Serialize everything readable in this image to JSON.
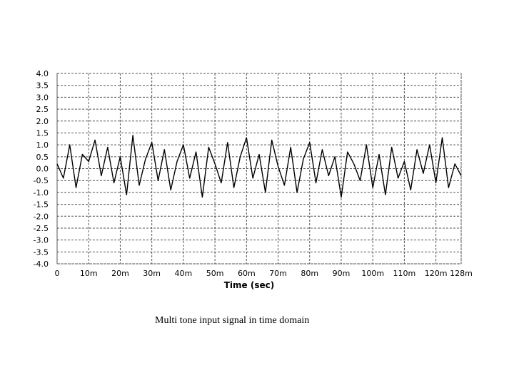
{
  "caption": "Multi tone input signal in time domain",
  "chart_data": {
    "type": "line",
    "title": "",
    "xlabel": "Time (sec)",
    "ylabel": "",
    "xlim": [
      0,
      128
    ],
    "ylim": [
      -4.0,
      4.0
    ],
    "x_unit": "ms",
    "grid": true,
    "grid_style": "dashed",
    "xticks": [
      "0",
      "10m",
      "20m",
      "30m",
      "40m",
      "50m",
      "60m",
      "70m",
      "80m",
      "90m",
      "100m",
      "110m",
      "120m",
      "128m"
    ],
    "yticks": [
      "4.0",
      "3.5",
      "3.0",
      "2.5",
      "2.0",
      "1.5",
      "1.0",
      "0.5",
      "0.0",
      "-0.5",
      "-1.0",
      "-1.5",
      "-2.0",
      "-2.5",
      "-3.0",
      "-3.5",
      "-4.0"
    ],
    "series": [
      {
        "color": "#000000",
        "x": [
          0,
          2,
          4,
          6,
          8,
          10,
          12,
          14,
          16,
          18,
          20,
          22,
          24,
          26,
          28,
          30,
          32,
          34,
          36,
          38,
          40,
          42,
          44,
          46,
          48,
          50,
          52,
          54,
          56,
          58,
          60,
          62,
          64,
          66,
          68,
          70,
          72,
          74,
          76,
          78,
          80,
          82,
          84,
          86,
          88,
          90,
          92,
          94,
          96,
          98,
          100,
          102,
          104,
          106,
          108,
          110,
          112,
          114,
          116,
          118,
          120,
          122,
          124,
          126,
          128
        ],
        "y": [
          0.2,
          -0.4,
          1.0,
          -0.8,
          0.6,
          0.3,
          1.2,
          -0.3,
          0.9,
          -0.6,
          0.5,
          -1.1,
          1.4,
          -0.7,
          0.4,
          1.1,
          -0.5,
          0.8,
          -0.9,
          0.3,
          1.0,
          -0.4,
          0.7,
          -1.2,
          0.9,
          0.2,
          -0.6,
          1.1,
          -0.8,
          0.5,
          1.3,
          -0.4,
          0.6,
          -1.0,
          1.2,
          0.1,
          -0.7,
          0.9,
          -1.0,
          0.4,
          1.1,
          -0.6,
          0.8,
          -0.3,
          0.5,
          -1.2,
          0.7,
          0.2,
          -0.5,
          1.0,
          -0.8,
          0.6,
          -1.1,
          0.9,
          -0.4,
          0.3,
          -0.9,
          0.8,
          -0.2,
          1.0,
          -0.6,
          1.3,
          -0.8,
          0.2,
          -0.3
        ]
      }
    ]
  }
}
